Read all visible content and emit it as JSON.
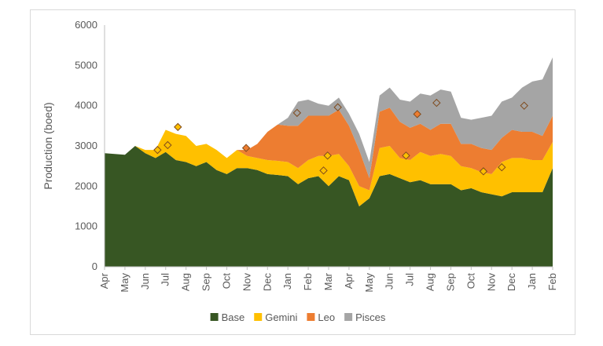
{
  "chart_data": {
    "type": "area",
    "stacked": true,
    "title": "",
    "xlabel": "",
    "ylabel": "Production (boed)",
    "ylim": [
      0,
      6000
    ],
    "yticks": [
      0,
      1000,
      2000,
      3000,
      4000,
      5000,
      6000
    ],
    "x_tick_labels": [
      "Apr",
      "May",
      "Jun",
      "Jul",
      "Aug",
      "Sep",
      "Oct",
      "Nov",
      "Dec",
      "Jan",
      "Feb",
      "Mar",
      "Apr",
      "May",
      "Jun",
      "Jul",
      "Aug",
      "Sep",
      "Oct",
      "Nov",
      "Dec",
      "Jan",
      "Feb"
    ],
    "x_tick_positions": [
      0,
      1,
      2,
      3,
      4,
      5,
      6,
      7,
      8,
      9,
      10,
      11,
      12,
      13,
      14,
      15,
      16,
      17,
      18,
      19,
      20,
      21,
      22
    ],
    "legend": {
      "position": "bottom"
    },
    "grid": false,
    "x": [
      0,
      0.5,
      1,
      1.5,
      2,
      2.5,
      3,
      3.5,
      4,
      4.5,
      5,
      5.5,
      6,
      6.5,
      7,
      7.5,
      8,
      8.5,
      9,
      9.5,
      10,
      10.5,
      11,
      11.5,
      12,
      12.5,
      13,
      13.5,
      14,
      14.5,
      15,
      15.5,
      16,
      16.5,
      17,
      17.5,
      18,
      18.5,
      19,
      19.5,
      20,
      20.5,
      21,
      21.5,
      22
    ],
    "series": [
      {
        "name": "Base",
        "color": "#375623",
        "values": [
          2820,
          2800,
          2780,
          3000,
          2820,
          2700,
          2850,
          2650,
          2600,
          2500,
          2600,
          2400,
          2300,
          2450,
          2450,
          2400,
          2300,
          2280,
          2250,
          2050,
          2200,
          2250,
          2000,
          2250,
          2150,
          1500,
          1700,
          2250,
          2300,
          2200,
          2100,
          2150,
          2050,
          2050,
          2050,
          1900,
          1950,
          1850,
          1800,
          1750,
          1850,
          1850,
          1850,
          1850,
          2450
        ]
      },
      {
        "name": "Gemini",
        "color": "#ffc000",
        "values": [
          0,
          0,
          0,
          0,
          80,
          200,
          550,
          650,
          650,
          500,
          450,
          500,
          400,
          450,
          300,
          300,
          350,
          350,
          350,
          400,
          450,
          500,
          750,
          550,
          350,
          500,
          200,
          700,
          700,
          500,
          550,
          700,
          700,
          750,
          700,
          600,
          500,
          500,
          500,
          850,
          850,
          850,
          800,
          800,
          650
        ]
      },
      {
        "name": "Leo",
        "color": "#ed7d31",
        "values": [
          0,
          0,
          0,
          0,
          0,
          0,
          0,
          0,
          0,
          0,
          0,
          0,
          0,
          0,
          150,
          350,
          700,
          900,
          900,
          1050,
          1100,
          1000,
          1000,
          1100,
          1000,
          900,
          300,
          900,
          950,
          900,
          800,
          700,
          650,
          750,
          800,
          550,
          600,
          600,
          600,
          600,
          700,
          650,
          700,
          600,
          650
        ]
      },
      {
        "name": "Pisces",
        "color": "#a5a5a5",
        "values": [
          0,
          0,
          0,
          0,
          0,
          0,
          0,
          0,
          0,
          0,
          0,
          0,
          0,
          0,
          0,
          0,
          0,
          0,
          200,
          600,
          400,
          300,
          250,
          300,
          300,
          400,
          400,
          400,
          500,
          550,
          650,
          750,
          850,
          850,
          800,
          650,
          600,
          750,
          850,
          900,
          800,
          1100,
          1250,
          1400,
          1450
        ]
      }
    ],
    "markers": [
      {
        "x": 2.6,
        "y": 2900,
        "color": "#ffc000"
      },
      {
        "x": 3.1,
        "y": 3020,
        "color": "#ffc000"
      },
      {
        "x": 3.6,
        "y": 3470,
        "color": "#ffc000"
      },
      {
        "x": 6.95,
        "y": 2950,
        "color": "#ed7d31"
      },
      {
        "x": 9.45,
        "y": 3820,
        "color": "#a5a5a5"
      },
      {
        "x": 10.75,
        "y": 2390,
        "color": "#ffc000"
      },
      {
        "x": 10.95,
        "y": 2760,
        "color": "#ffc000"
      },
      {
        "x": 11.45,
        "y": 3960,
        "color": "#a5a5a5"
      },
      {
        "x": 14.8,
        "y": 2760,
        "color": "#ffc000"
      },
      {
        "x": 15.35,
        "y": 3790,
        "color": "#ed7d31"
      },
      {
        "x": 16.3,
        "y": 4070,
        "color": "#a5a5a5"
      },
      {
        "x": 18.6,
        "y": 2370,
        "color": "#ffc000"
      },
      {
        "x": 19.5,
        "y": 2470,
        "color": "#ffc000"
      },
      {
        "x": 20.6,
        "y": 4000,
        "color": "#a5a5a5"
      }
    ]
  }
}
